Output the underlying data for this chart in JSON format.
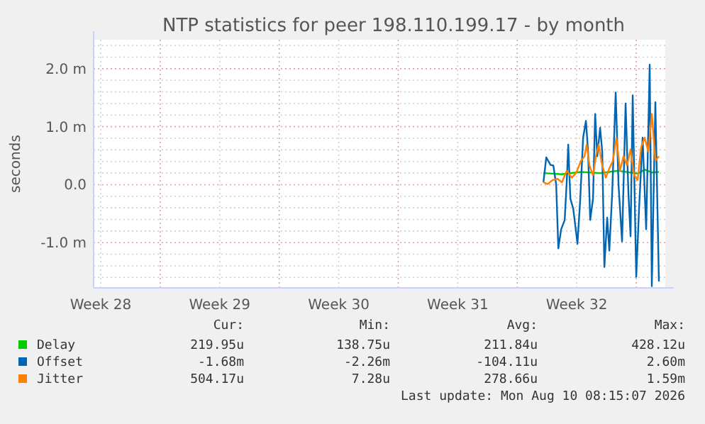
{
  "chart_data": {
    "type": "line",
    "title": "NTP statistics for peer 198.110.199.17 - by month",
    "ylabel": "seconds",
    "xlim": [
      "2026-07-08T02:00",
      "2026-08-10T17:00"
    ],
    "xticks": [
      {
        "value": "2026-07-08T12:00",
        "label": "Week 28"
      },
      {
        "value": "2026-07-12",
        "label": null
      },
      {
        "value": "2026-07-15T12:00",
        "label": "Week 29"
      },
      {
        "value": "2026-07-19",
        "label": null
      },
      {
        "value": "2026-07-22T12:00",
        "label": "Week 30"
      },
      {
        "value": "2026-07-26",
        "label": null
      },
      {
        "value": "2026-07-29T12:00",
        "label": "Week 31"
      },
      {
        "value": "2026-08-02",
        "label": null
      },
      {
        "value": "2026-08-05T12:00",
        "label": "Week 32"
      },
      {
        "value": "2026-08-09",
        "label": null
      }
    ],
    "ylim": [
      -1.78,
      2.5
    ],
    "yticks": [
      {
        "value": -1.6,
        "label": null
      },
      {
        "value": -1.4,
        "label": null
      },
      {
        "value": -1.2,
        "label": null
      },
      {
        "value": -1,
        "label": "-1.0 m"
      },
      {
        "value": -0.8,
        "label": null
      },
      {
        "value": -0.6,
        "label": null
      },
      {
        "value": -0.4,
        "label": null
      },
      {
        "value": -0.2,
        "label": null
      },
      {
        "value": 0,
        "label": "0.0"
      },
      {
        "value": 0.2,
        "label": null
      },
      {
        "value": 0.4,
        "label": null
      },
      {
        "value": 0.6,
        "label": null
      },
      {
        "value": 0.8,
        "label": null
      },
      {
        "value": 1,
        "label": "1.0 m"
      },
      {
        "value": 1.2,
        "label": null
      },
      {
        "value": 1.4,
        "label": null
      },
      {
        "value": 1.6,
        "label": null
      },
      {
        "value": 1.8,
        "label": null
      },
      {
        "value": 2,
        "label": "2.0 m"
      },
      {
        "value": 2.2,
        "label": null
      },
      {
        "value": 2.4,
        "label": null
      }
    ],
    "grid": true,
    "legend": "bottom left",
    "series": [
      {
        "name": "Delay",
        "color": "#00cc00",
        "x": [
          "2026-08-03T13:00",
          "2026-08-04T15:00",
          "2026-08-05T18:00",
          "2026-08-06T21:00",
          "2026-08-07T23:00",
          "2026-08-09T02:00",
          "2026-08-09T12:00",
          "2026-08-09T22:00",
          "2026-08-10T08:00"
        ],
        "values": [
          0.2,
          0.18,
          0.22,
          0.2,
          0.24,
          0.19,
          0.26,
          0.21,
          0.22
        ]
      },
      {
        "name": "Offset",
        "color": "#0066b3",
        "x": [
          "2026-08-03T13:00",
          "2026-08-03T17:00",
          "2026-08-03T23:00",
          "2026-08-04T03:00",
          "2026-08-04T07:00",
          "2026-08-04T10:00",
          "2026-08-04T14:00",
          "2026-08-04T19:00",
          "2026-08-04T22:00",
          "2026-08-05T00:00",
          "2026-08-05T03:00",
          "2026-08-05T07:00",
          "2026-08-05T11:00",
          "2026-08-05T13:00",
          "2026-08-05T17:00",
          "2026-08-05T21:00",
          "2026-08-06T01:00",
          "2026-08-06T04:00",
          "2026-08-06T07:00",
          "2026-08-06T11:00",
          "2026-08-06T14:00",
          "2026-08-06T17:00",
          "2026-08-06T21:00",
          "2026-08-07T00:00",
          "2026-08-07T03:00",
          "2026-08-07T07:00",
          "2026-08-07T10:00",
          "2026-08-07T14:00",
          "2026-08-07T19:00",
          "2026-08-07T23:00",
          "2026-08-08T04:00",
          "2026-08-08T09:00",
          "2026-08-08T13:00",
          "2026-08-08T16:00",
          "2026-08-08T19:00",
          "2026-08-09T00:00",
          "2026-08-09T04:00",
          "2026-08-09T09:00",
          "2026-08-09T14:00",
          "2026-08-09T19:00",
          "2026-08-09T22:00",
          "2026-08-10T03:00",
          "2026-08-10T08:00"
        ],
        "values": [
          0.04,
          0.47,
          0.34,
          0.33,
          0.0,
          -1.1,
          -0.77,
          -0.61,
          0.08,
          0.69,
          -0.24,
          -0.41,
          -0.81,
          -1.02,
          -0.24,
          0.81,
          1.1,
          0.57,
          -0.61,
          -0.24,
          1.22,
          0.49,
          0.98,
          0.57,
          -1.42,
          -0.57,
          -1.14,
          -0.16,
          1.59,
          0.0,
          -0.98,
          1.4,
          -0.16,
          -0.89,
          1.54,
          -1.59,
          -0.41,
          0.81,
          -0.77,
          2.07,
          -1.75,
          1.42,
          -1.67
        ]
      },
      {
        "name": "Jitter",
        "color": "#ff8000",
        "x": [
          "2026-08-03T13:00",
          "2026-08-03T19:00",
          "2026-08-04T02:00",
          "2026-08-04T09:00",
          "2026-08-04T15:00",
          "2026-08-04T22:00",
          "2026-08-05T05:00",
          "2026-08-05T11:00",
          "2026-08-05T18:00",
          "2026-08-05T23:00",
          "2026-08-06T02:00",
          "2026-08-06T06:00",
          "2026-08-06T11:00",
          "2026-08-06T15:00",
          "2026-08-06T19:00",
          "2026-08-07T00:00",
          "2026-08-07T05:00",
          "2026-08-07T10:00",
          "2026-08-07T15:00",
          "2026-08-07T20:00",
          "2026-08-08T01:00",
          "2026-08-08T06:00",
          "2026-08-08T11:00",
          "2026-08-08T16:00",
          "2026-08-08T21:00",
          "2026-08-09T02:00",
          "2026-08-09T07:00",
          "2026-08-09T12:00",
          "2026-08-09T17:00",
          "2026-08-09T22:00",
          "2026-08-10T03:00",
          "2026-08-10T08:00"
        ],
        "values": [
          0.04,
          0.01,
          0.08,
          0.1,
          0.04,
          0.24,
          0.12,
          0.2,
          0.41,
          0.49,
          0.69,
          0.33,
          0.16,
          0.49,
          0.69,
          0.33,
          0.12,
          0.28,
          0.41,
          0.81,
          0.24,
          0.49,
          0.33,
          0.61,
          0.16,
          0.08,
          0.65,
          0.81,
          0.57,
          1.22,
          0.41,
          0.49
        ]
      }
    ],
    "annotations": [
      "Cur:",
      "Min:",
      "Avg:",
      "Max:",
      "219.95u",
      "138.75u",
      "211.84u",
      "428.12u",
      "-1.68m",
      "-2.26m",
      "-104.11u",
      "2.60m",
      "504.17u",
      "7.28u",
      "278.66u",
      "1.59m",
      "Last update: Mon Aug 10 08:15:07 2026"
    ]
  }
}
